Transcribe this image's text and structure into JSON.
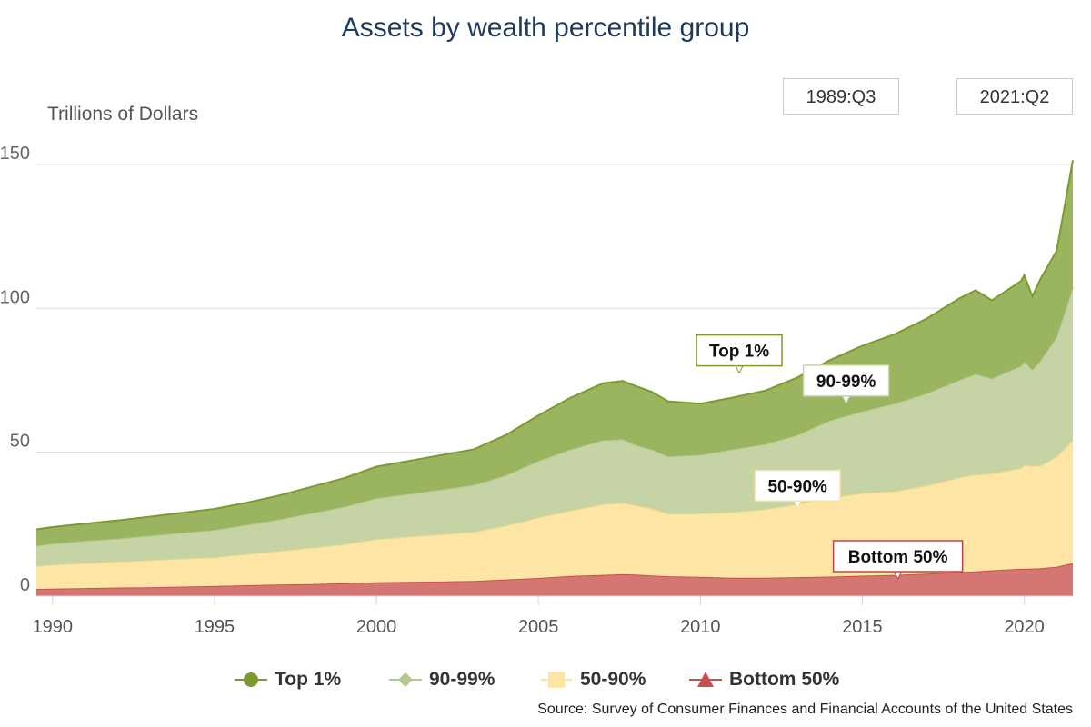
{
  "chart_data": {
    "type": "area",
    "stacked": true,
    "title": "Assets by wealth percentile group",
    "ylabel": "Trillions of Dollars",
    "xlabel": "",
    "xlim": [
      1989.5,
      2021.5
    ],
    "ylim": [
      0,
      150
    ],
    "x_ticks": [
      1990,
      1995,
      2000,
      2005,
      2010,
      2015,
      2020
    ],
    "y_ticks": [
      0,
      50,
      100,
      150
    ],
    "grid": true,
    "legend_position": "bottom",
    "range_selector": {
      "start": "1989:Q3",
      "end": "2021:Q2"
    },
    "source": "Source: Survey of Consumer Finances and Financial Accounts of the United States",
    "x": [
      1989.5,
      1990,
      1991,
      1992,
      1993,
      1994,
      1995,
      1996,
      1997,
      1998,
      1999,
      2000,
      2001,
      2002,
      2003,
      2004,
      2005,
      2006,
      2007,
      2007.6,
      2008,
      2008.5,
      2009,
      2010,
      2011,
      2012,
      2013,
      2014,
      2015,
      2016,
      2017,
      2018,
      2018.5,
      2019,
      2019.9,
      2020,
      2020.25,
      2020.5,
      2021,
      2021.5
    ],
    "series": [
      {
        "name": "Bottom 50%",
        "color": "#c9504f",
        "fill": "#d47774",
        "values": [
          2.5,
          2.6,
          2.8,
          3.0,
          3.1,
          3.3,
          3.5,
          3.8,
          4.0,
          4.2,
          4.5,
          4.8,
          5.0,
          5.1,
          5.3,
          5.8,
          6.3,
          7.0,
          7.4,
          7.6,
          7.5,
          7.2,
          6.9,
          6.7,
          6.4,
          6.4,
          6.6,
          6.8,
          7.1,
          7.4,
          7.8,
          8.4,
          8.6,
          9.0,
          9.5,
          9.5,
          9.6,
          9.7,
          10.2,
          11.5
        ]
      },
      {
        "name": "50-90%",
        "color": "#f0d98a",
        "fill": "#fde6a5",
        "values": [
          8.0,
          8.3,
          8.7,
          9.0,
          9.4,
          9.7,
          10.0,
          10.8,
          11.7,
          12.6,
          13.5,
          15.0,
          15.7,
          16.4,
          17.0,
          18.7,
          21.0,
          22.8,
          24.5,
          24.9,
          24.0,
          23.3,
          21.8,
          22.0,
          22.8,
          23.8,
          25.4,
          27.4,
          28.7,
          29.0,
          30.7,
          32.9,
          33.6,
          33.6,
          35.0,
          36.0,
          35.6,
          35.6,
          38.3,
          42.7
        ]
      },
      {
        "name": "90-99%",
        "color": "#b5c88e",
        "fill": "#c6d4a5",
        "values": [
          7.0,
          7.3,
          7.7,
          8.0,
          8.5,
          9.0,
          9.5,
          10.2,
          11.0,
          12.0,
          13.0,
          14.2,
          14.8,
          15.5,
          16.3,
          17.5,
          19.7,
          21.2,
          22.3,
          22.0,
          21.0,
          20.5,
          19.8,
          20.4,
          21.8,
          22.6,
          24.0,
          26.8,
          28.4,
          30.5,
          32.0,
          33.8,
          35.0,
          33.0,
          35.5,
          36.0,
          33.5,
          36.5,
          41.5,
          53.0
        ]
      },
      {
        "name": "Top 1%",
        "color": "#7c9a2f",
        "fill": "#9ab45f",
        "values": [
          5.7,
          5.8,
          6.0,
          6.3,
          6.6,
          7.0,
          7.3,
          7.7,
          8.3,
          9.2,
          10.0,
          11.0,
          11.5,
          12.0,
          12.4,
          14.0,
          15.8,
          18.0,
          19.8,
          20.3,
          20.5,
          20.0,
          19.2,
          17.8,
          18.0,
          18.6,
          20.0,
          21.0,
          22.8,
          24.1,
          26.0,
          28.4,
          29.1,
          27.2,
          29.5,
          30.0,
          25.5,
          28.4,
          30.0,
          44.3
        ]
      }
    ],
    "annotations": [
      {
        "text": "Top 1%",
        "x": 2011.2,
        "y": 77.5,
        "color": "#7c9a2f"
      },
      {
        "text": "90-99%",
        "x": 2014.5,
        "y": 67.0,
        "color": "#c6d4a5"
      },
      {
        "text": "50-90%",
        "x": 2013.0,
        "y": 30.5,
        "color": "#f5e1a0"
      },
      {
        "text": "Bottom 50%",
        "x": 2016.1,
        "y": 6.0,
        "color": "#b5474b"
      }
    ]
  },
  "legend": {
    "items": [
      {
        "label": "Top 1%",
        "marker": "circle-icon",
        "color": "#7c9a2f"
      },
      {
        "label": "90-99%",
        "marker": "diamond-icon",
        "color": "#b5c88e"
      },
      {
        "label": "50-90%",
        "marker": "square-icon",
        "color": "#fde6a5"
      },
      {
        "label": "Bottom 50%",
        "marker": "triangle-icon",
        "color": "#c9504f"
      }
    ]
  }
}
